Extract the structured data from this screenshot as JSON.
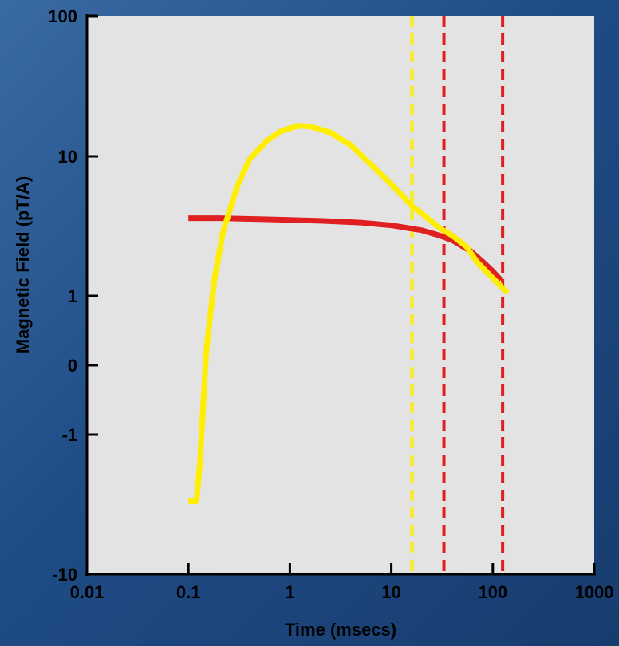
{
  "chart_data": {
    "type": "line",
    "title": "",
    "xlabel": "Time (msecs)",
    "ylabel": "Magnetic Field (pT/A)",
    "x_scale": "log",
    "y_scale": "symlog",
    "xlim": [
      0.01,
      1000
    ],
    "ylim": [
      -10,
      100
    ],
    "x_ticks": [
      {
        "value": 0.01,
        "label": "0.01"
      },
      {
        "value": 0.1,
        "label": "0.1"
      },
      {
        "value": 1,
        "label": "1"
      },
      {
        "value": 10,
        "label": "10"
      },
      {
        "value": 100,
        "label": "100"
      },
      {
        "value": 1000,
        "label": "1000"
      }
    ],
    "y_ticks": [
      {
        "value": 100,
        "label": "100"
      },
      {
        "value": 10,
        "label": "10"
      },
      {
        "value": 1,
        "label": "1"
      },
      {
        "value": 0,
        "label": "0"
      },
      {
        "value": -1,
        "label": "-1"
      },
      {
        "value": -10,
        "label": "-10"
      }
    ],
    "grid": false,
    "legend": "none",
    "plot_background": "#e3e3e3",
    "series": [
      {
        "color": "#e02020",
        "x": [
          0.1,
          0.2,
          0.5,
          1,
          2,
          5,
          10,
          20,
          30,
          40,
          60,
          80,
          100,
          120
        ],
        "y": [
          3.6,
          3.6,
          3.55,
          3.5,
          3.45,
          3.35,
          3.2,
          2.95,
          2.7,
          2.5,
          2.1,
          1.75,
          1.5,
          1.3
        ]
      },
      {
        "color": "#ffee00",
        "x": [
          0.1,
          0.12,
          0.13,
          0.15,
          0.18,
          0.22,
          0.3,
          0.4,
          0.6,
          0.8,
          1.2,
          1.6,
          2.5,
          4,
          6,
          9,
          12,
          16,
          20,
          25,
          30,
          40,
          55,
          70,
          90,
          110,
          140
        ],
        "y": [
          -3.0,
          -3.0,
          -1.6,
          0.2,
          1.3,
          2.9,
          6.0,
          9.5,
          13.0,
          15.0,
          16.5,
          16.3,
          14.8,
          12.0,
          9.0,
          6.8,
          5.5,
          4.4,
          3.9,
          3.4,
          3.05,
          2.7,
          2.25,
          1.75,
          1.45,
          1.25,
          1.05
        ]
      }
    ],
    "vertical_markers": [
      {
        "x": 16,
        "color": "#ffee00",
        "style": "dashed"
      },
      {
        "x": 33,
        "color": "#e02020",
        "style": "dashed"
      },
      {
        "x": 125,
        "color": "#e02020",
        "style": "dashed"
      }
    ]
  }
}
